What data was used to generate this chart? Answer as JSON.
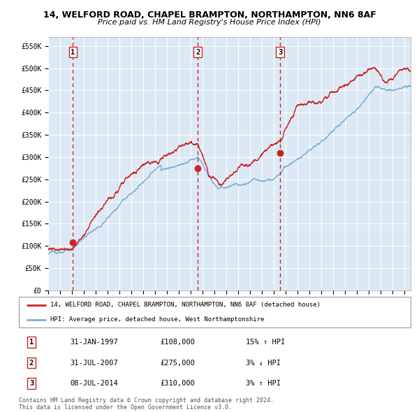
{
  "title_line1": "14, WELFORD ROAD, CHAPEL BRAMPTON, NORTHAMPTON, NN6 8AF",
  "title_line2": "Price paid vs. HM Land Registry's House Price Index (HPI)",
  "ylabel_ticks": [
    "£0",
    "£50K",
    "£100K",
    "£150K",
    "£200K",
    "£250K",
    "£300K",
    "£350K",
    "£400K",
    "£450K",
    "£500K",
    "£550K"
  ],
  "ytick_values": [
    0,
    50000,
    100000,
    150000,
    200000,
    250000,
    300000,
    350000,
    400000,
    450000,
    500000,
    550000
  ],
  "hpi_color": "#7bafd4",
  "price_color": "#cc2222",
  "background_color": "#dce9f5",
  "grid_color": "#ffffff",
  "sale_dates": [
    1997.08,
    2007.58,
    2014.52
  ],
  "sale_prices": [
    108000,
    275000,
    310000
  ],
  "sale_labels": [
    "1",
    "2",
    "3"
  ],
  "vline_x": [
    1997.08,
    2007.58,
    2014.52
  ],
  "legend_line1": "14, WELFORD ROAD, CHAPEL BRAMPTON, NORTHAMPTON, NN6 8AF (detached house)",
  "legend_line2": "HPI: Average price, detached house, West Northamptonshire",
  "table_data": [
    [
      "1",
      "31-JAN-1997",
      "£108,000",
      "15% ↑ HPI"
    ],
    [
      "2",
      "31-JUL-2007",
      "£275,000",
      "3% ↓ HPI"
    ],
    [
      "3",
      "08-JUL-2014",
      "£310,000",
      "3% ↑ HPI"
    ]
  ],
  "footer_line1": "Contains HM Land Registry data © Crown copyright and database right 2024.",
  "footer_line2": "This data is licensed under the Open Government Licence v3.0.",
  "xlim": [
    1995.0,
    2025.5
  ],
  "ylim": [
    0,
    570000
  ],
  "fig_width": 6.0,
  "fig_height": 5.9,
  "dpi": 100
}
